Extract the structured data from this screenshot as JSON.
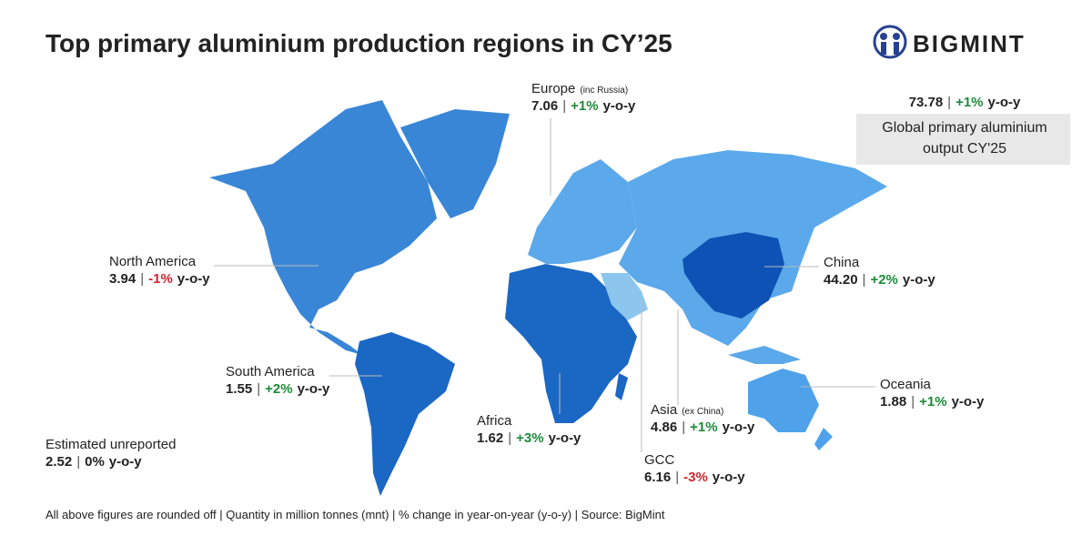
{
  "header": {
    "title": "Top primary aluminium production regions in CY’25",
    "logo": "BIGMINT"
  },
  "separator": "|",
  "unit": "y-o-y",
  "global": {
    "value": "73.78",
    "change": "+1%",
    "color": "#1e8a3a",
    "label_line1": "Global primary aluminium",
    "label_line2": "output CY'25"
  },
  "regions": [
    {
      "name": "Europe",
      "note": "(inc Russia)",
      "value": "7.06",
      "change": "+1%",
      "color": "#1e8a3a"
    },
    {
      "name": "North America",
      "value": "3.94",
      "change": "-1%",
      "color": "#d0262d"
    },
    {
      "name": "South America",
      "value": "1.55",
      "change": "+2%",
      "color": "#1e8a3a"
    },
    {
      "name": "Africa",
      "value": "1.62",
      "change": "+3%",
      "color": "#1e8a3a"
    },
    {
      "name": "GCC",
      "value": "6.16",
      "change": "-3%",
      "color": "#d0262d"
    },
    {
      "name": "Asia",
      "note": "(ex China)",
      "value": "4.86",
      "change": "+1%",
      "color": "#1e8a3a"
    },
    {
      "name": "China",
      "value": "44.20",
      "change": "+2%",
      "color": "#1e8a3a"
    },
    {
      "name": "Oceania",
      "value": "1.88",
      "change": "+1%",
      "color": "#1e8a3a"
    },
    {
      "name": "Estimated unreported",
      "value": "2.52",
      "change": "0%",
      "color": "#222222"
    }
  ],
  "footer": "All above figures are rounded off | Quantity in million tonnes (mnt) | % change in year-on-year (y-o-y) | Source: BigMint"
}
